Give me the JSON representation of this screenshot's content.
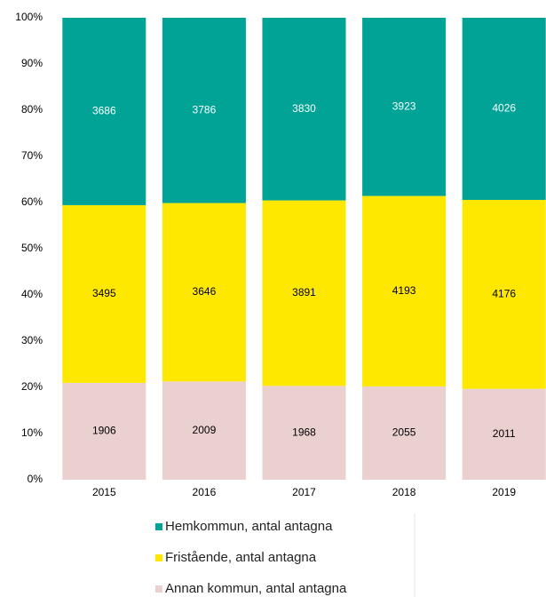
{
  "chart_data": {
    "type": "bar",
    "stacking": "percent",
    "categories": [
      "2015",
      "2016",
      "2017",
      "2018",
      "2019"
    ],
    "series": [
      {
        "name": "Annan kommun, antal antagna",
        "color": "#ebd0d0",
        "label_color": "#000000",
        "values": [
          1906,
          2009,
          1968,
          2055,
          2011
        ]
      },
      {
        "name": "Fristående, antal antagna",
        "color": "#ffe800",
        "label_color": "#000000",
        "values": [
          3495,
          3646,
          3891,
          4193,
          4176
        ]
      },
      {
        "name": "Hemkommun, antal antagna",
        "color": "#00a396",
        "label_color": "#ffffff",
        "values": [
          3686,
          3786,
          3830,
          3923,
          4026
        ]
      }
    ],
    "ylim": [
      0,
      100
    ],
    "yticks": [
      {
        "value": 0,
        "label": "0%"
      },
      {
        "value": 10,
        "label": "10%"
      },
      {
        "value": 20,
        "label": "20%"
      },
      {
        "value": 30,
        "label": "30%"
      },
      {
        "value": 40,
        "label": "40%"
      },
      {
        "value": 50,
        "label": "50%"
      },
      {
        "value": 60,
        "label": "60%"
      },
      {
        "value": 70,
        "label": "70%"
      },
      {
        "value": 80,
        "label": "80%"
      },
      {
        "value": 90,
        "label": "90%"
      },
      {
        "value": 100,
        "label": "100%"
      }
    ],
    "grid": false,
    "legend": "bottom"
  }
}
